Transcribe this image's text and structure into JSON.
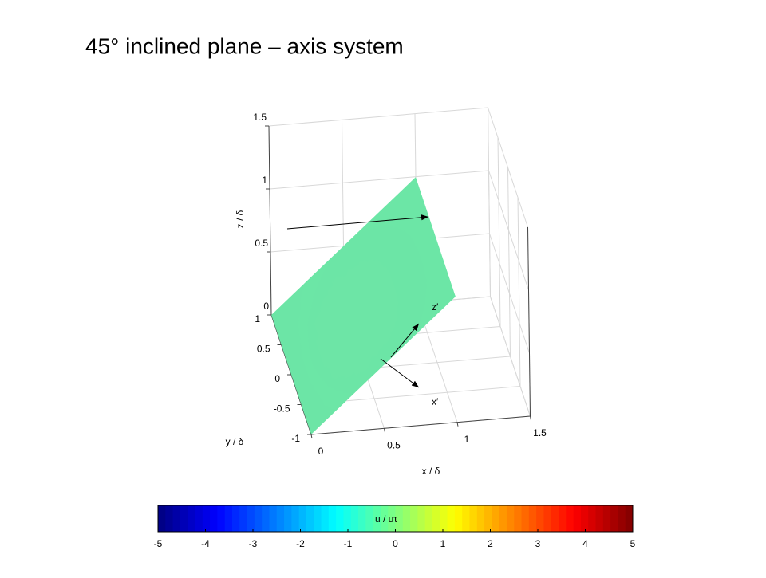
{
  "chart_data": {
    "type": "surface3d",
    "title": "45° inclined plane – axis system",
    "xlabel": "x / δ",
    "ylabel": "y / δ",
    "zlabel": "z / δ",
    "xlim": [
      0,
      1.5
    ],
    "ylim": [
      -1,
      1
    ],
    "zlim": [
      0,
      1.5
    ],
    "xticks": [
      0,
      0.5,
      1,
      1.5
    ],
    "yticks": [
      -1,
      -0.5,
      0,
      0.5,
      1
    ],
    "zticks": [
      0,
      0.5,
      1,
      1.5
    ],
    "grid": true,
    "colorbar": {
      "label": "u / uτ",
      "clim": [
        -5,
        5
      ],
      "ticks": [
        -5,
        -4,
        -3,
        -2,
        -1,
        0,
        1,
        2,
        3,
        4,
        5
      ],
      "colormap": "jet"
    },
    "annotations": [
      "z′",
      "x′"
    ]
  }
}
